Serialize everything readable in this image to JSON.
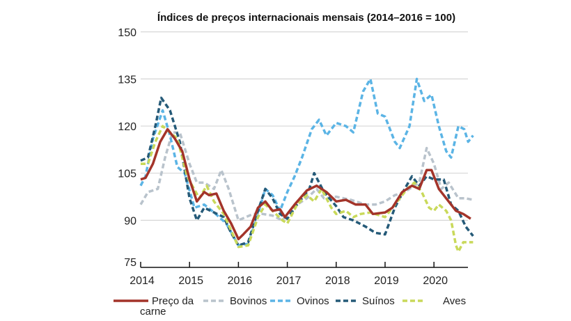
{
  "chart_data": {
    "type": "line",
    "title": "Índices de preços internacionais mensais (2014–2016 = 100)",
    "xlabel": "",
    "ylabel": "",
    "xlim": [
      2014,
      2020.8
    ],
    "ylim": [
      75,
      150
    ],
    "yticks": [
      75,
      90,
      105,
      120,
      135,
      150
    ],
    "xticks": [
      2014,
      2015,
      2016,
      2017,
      2018,
      2019,
      2020
    ],
    "grid": true,
    "legend_placement": "bottom",
    "series": [
      {
        "name": "Preço da carne",
        "label_lines": [
          "Preço da",
          "carne"
        ],
        "color": "#A3342A",
        "style": "solid",
        "x": [
          2014.0,
          2014.1,
          2014.25,
          2014.4,
          2014.55,
          2014.7,
          2014.85,
          2015.0,
          2015.15,
          2015.3,
          2015.4,
          2015.55,
          2015.7,
          2015.85,
          2016.0,
          2016.1,
          2016.25,
          2016.4,
          2016.55,
          2016.7,
          2016.85,
          2016.95,
          2017.15,
          2017.4,
          2017.6,
          2017.8,
          2018.0,
          2018.2,
          2018.4,
          2018.6,
          2018.75,
          2019.0,
          2019.15,
          2019.35,
          2019.55,
          2019.7,
          2019.85,
          2019.95,
          2020.1,
          2020.3,
          2020.45,
          2020.6,
          2020.75
        ],
        "y": [
          103,
          103.5,
          108,
          115,
          119,
          116,
          112,
          103,
          96,
          99,
          98,
          98.5,
          93,
          89,
          84,
          85.5,
          88,
          94,
          96,
          93,
          93.5,
          91,
          95,
          99.5,
          101,
          99,
          96,
          96.5,
          95,
          95,
          92,
          92.5,
          94,
          99,
          101,
          100,
          106,
          106,
          100,
          96,
          93,
          92,
          90.5
        ]
      },
      {
        "name": "Bovinos",
        "color": "#B9C3CC",
        "style": "dashed",
        "x": [
          2014.0,
          2014.15,
          2014.35,
          2014.5,
          2014.65,
          2014.8,
          2015.0,
          2015.15,
          2015.3,
          2015.5,
          2015.65,
          2015.8,
          2016.0,
          2016.15,
          2016.3,
          2016.5,
          2016.7,
          2016.9,
          2017.1,
          2017.4,
          2017.6,
          2017.75,
          2018.0,
          2018.3,
          2018.6,
          2018.8,
          2019.0,
          2019.2,
          2019.4,
          2019.6,
          2019.7,
          2019.85,
          2020.0,
          2020.15,
          2020.3,
          2020.5,
          2020.65,
          2020.8
        ],
        "y": [
          95,
          99,
          100,
          110,
          118,
          118,
          108,
          102,
          102,
          100,
          106,
          100,
          90,
          91,
          92,
          92,
          91.5,
          90,
          94,
          97,
          100,
          97,
          97.5,
          96.5,
          95,
          95,
          96,
          98,
          99,
          101,
          102,
          113,
          108,
          100,
          102,
          97,
          97,
          96.5
        ]
      },
      {
        "name": "Ovinos",
        "color": "#5BB4E5",
        "style": "dashed",
        "x": [
          2014.0,
          2014.1,
          2014.25,
          2014.45,
          2014.6,
          2014.75,
          2014.9,
          2015.1,
          2015.3,
          2015.5,
          2015.75,
          2016.0,
          2016.2,
          2016.4,
          2016.55,
          2016.7,
          2016.85,
          2017.0,
          2017.15,
          2017.3,
          2017.5,
          2017.65,
          2017.8,
          2018.0,
          2018.2,
          2018.35,
          2018.55,
          2018.7,
          2018.85,
          2019.0,
          2019.2,
          2019.3,
          2019.5,
          2019.65,
          2019.8,
          2019.95,
          2020.1,
          2020.25,
          2020.35,
          2020.5,
          2020.62,
          2020.7,
          2020.8
        ],
        "y": [
          101,
          104,
          116,
          125,
          117,
          107,
          105,
          94,
          95,
          92.5,
          89,
          82,
          82.5,
          92,
          100,
          98,
          93,
          99,
          104,
          110,
          119,
          122,
          117,
          121,
          120,
          118,
          131,
          135,
          124,
          123,
          115,
          113,
          120,
          135,
          128,
          130,
          120,
          112,
          110,
          120,
          119,
          115,
          117
        ]
      },
      {
        "name": "Suínos",
        "color": "#255A78",
        "style": "dashed",
        "x": [
          2014.0,
          2014.15,
          2014.3,
          2014.42,
          2014.6,
          2014.8,
          2015.0,
          2015.15,
          2015.3,
          2015.5,
          2015.7,
          2015.85,
          2016.0,
          2016.2,
          2016.4,
          2016.55,
          2016.7,
          2016.85,
          2017.0,
          2017.2,
          2017.45,
          2017.55,
          2017.75,
          2018.0,
          2018.15,
          2018.35,
          2018.6,
          2018.8,
          2019.0,
          2019.2,
          2019.4,
          2019.55,
          2019.7,
          2019.85,
          2020.0,
          2020.2,
          2020.35,
          2020.5,
          2020.65,
          2020.8
        ],
        "y": [
          109,
          110,
          120,
          129,
          125,
          115,
          97,
          90,
          94,
          92.5,
          91,
          86,
          82,
          83,
          93,
          100,
          97,
          92,
          90.5,
          95,
          100,
          105,
          99,
          94.5,
          91,
          90,
          88,
          86,
          85.5,
          94,
          100,
          104,
          101,
          104,
          103,
          103,
          95,
          93,
          88,
          85
        ]
      },
      {
        "name": "Aves",
        "color": "#C9D95A",
        "style": "dashed",
        "x": [
          2014.0,
          2014.15,
          2014.3,
          2014.45,
          2014.6,
          2014.75,
          2014.95,
          2015.2,
          2015.35,
          2015.5,
          2015.7,
          2015.9,
          2016.0,
          2016.2,
          2016.4,
          2016.55,
          2016.7,
          2016.9,
          2017.0,
          2017.2,
          2017.4,
          2017.55,
          2017.7,
          2017.9,
          2018.0,
          2018.2,
          2018.35,
          2018.5,
          2018.7,
          2019.0,
          2019.2,
          2019.45,
          2019.6,
          2019.75,
          2019.9,
          2020.0,
          2020.1,
          2020.25,
          2020.35,
          2020.45,
          2020.5,
          2020.6,
          2020.8
        ],
        "y": [
          108,
          108,
          115,
          120,
          118,
          116,
          104,
          97,
          101,
          96,
          92,
          85,
          81.5,
          82,
          91,
          95,
          93,
          90,
          89,
          95,
          98,
          96,
          100,
          94,
          92,
          93,
          91,
          92,
          92.5,
          91,
          95,
          100,
          102,
          99,
          94,
          93,
          95,
          93,
          90,
          82,
          80,
          83,
          83
        ]
      }
    ]
  }
}
